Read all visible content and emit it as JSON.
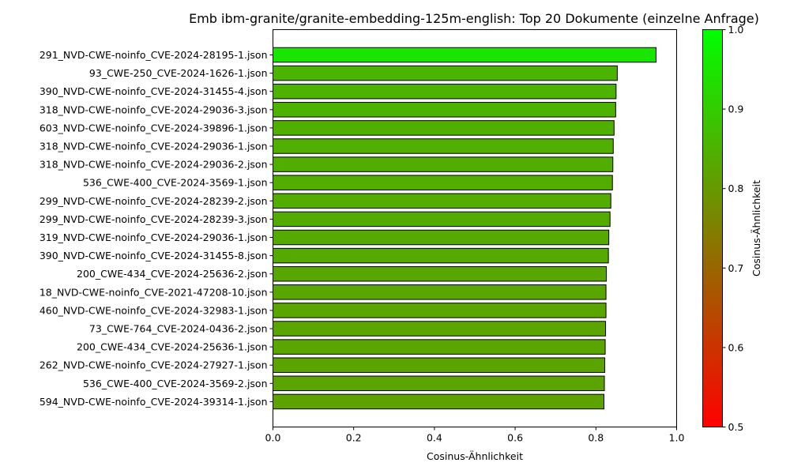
{
  "chart_data": {
    "type": "bar",
    "orientation": "horizontal",
    "title": "Emb ibm-granite/granite-embedding-125m-english: Top 20 Dokumente (einzelne Anfrage)",
    "xlabel": "Cosinus-Ähnlichkeit",
    "ylabel": "",
    "xlim": [
      0.0,
      1.0
    ],
    "xticks": [
      "0.0",
      "0.2",
      "0.4",
      "0.6",
      "0.8",
      "1.0"
    ],
    "grid": false,
    "categories": [
      "291_NVD-CWE-noinfo_CVE-2024-28195-1.json",
      "93_CWE-250_CVE-2024-1626-1.json",
      "390_NVD-CWE-noinfo_CVE-2024-31455-4.json",
      "318_NVD-CWE-noinfo_CVE-2024-29036-3.json",
      "603_NVD-CWE-noinfo_CVE-2024-39896-1.json",
      "318_NVD-CWE-noinfo_CVE-2024-29036-1.json",
      "318_NVD-CWE-noinfo_CVE-2024-29036-2.json",
      "536_CWE-400_CVE-2024-3569-1.json",
      "299_NVD-CWE-noinfo_CVE-2024-28239-2.json",
      "299_NVD-CWE-noinfo_CVE-2024-28239-3.json",
      "319_NVD-CWE-noinfo_CVE-2024-29036-1.json",
      "390_NVD-CWE-noinfo_CVE-2024-31455-8.json",
      "200_CWE-434_CVE-2024-25636-2.json",
      "18_NVD-CWE-noinfo_CVE-2021-47208-10.json",
      "460_NVD-CWE-noinfo_CVE-2024-32983-1.json",
      "73_CWE-764_CVE-2024-0436-2.json",
      "200_CWE-434_CVE-2024-25636-1.json",
      "262_NVD-CWE-noinfo_CVE-2024-27927-1.json",
      "536_CWE-400_CVE-2024-3569-2.json",
      "594_NVD-CWE-noinfo_CVE-2024-39314-1.json"
    ],
    "values": [
      0.949,
      0.853,
      0.85,
      0.849,
      0.845,
      0.843,
      0.842,
      0.841,
      0.837,
      0.835,
      0.832,
      0.831,
      0.826,
      0.825,
      0.825,
      0.824,
      0.823,
      0.822,
      0.821,
      0.82
    ],
    "colorbar": {
      "label": "Cosinus-Ähnlichkeit",
      "range": [
        0.5,
        1.0
      ],
      "ticks": [
        "0.5",
        "0.6",
        "0.7",
        "0.8",
        "0.9",
        "1.0"
      ],
      "color_low": "#ff0000",
      "color_high": "#00ff00"
    },
    "bar_edge_color": "#000000"
  }
}
